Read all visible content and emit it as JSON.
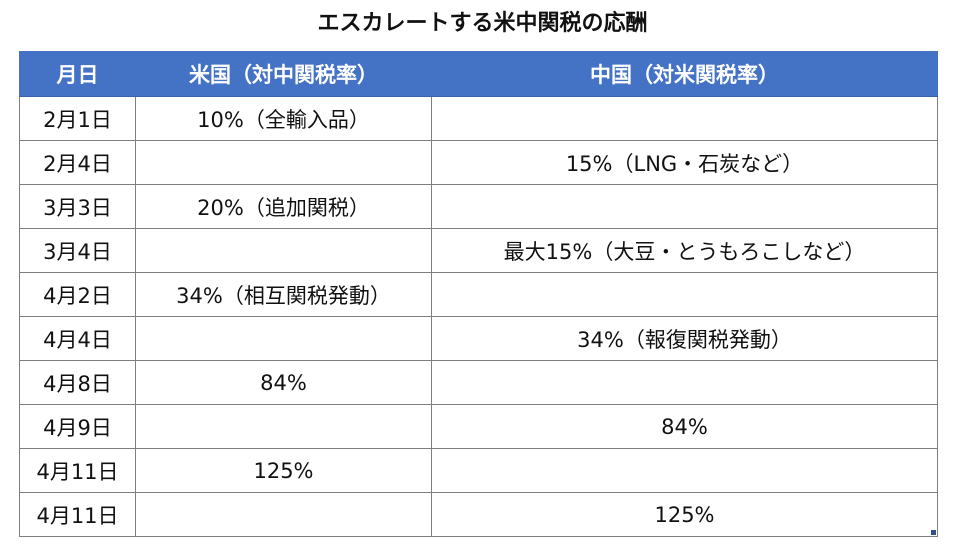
{
  "title": "エスカレートする米中関税の応酬",
  "table": {
    "headers": {
      "date": "月日",
      "us": "米国（対中関税率）",
      "china": "中国（対米関税率）"
    },
    "rows": [
      {
        "date": "2月1日",
        "us": "10%（全輸入品）",
        "china": ""
      },
      {
        "date": "2月4日",
        "us": "",
        "china": "15%（LNG・石炭など）"
      },
      {
        "date": "3月3日",
        "us": "20%（追加関税）",
        "china": ""
      },
      {
        "date": "3月4日",
        "us": "",
        "china": "最大15%（大豆・とうもろこしなど）"
      },
      {
        "date": "4月2日",
        "us": "34%（相互関税発動）",
        "china": ""
      },
      {
        "date": "4月4日",
        "us": "",
        "china": "34%（報復関税発動）"
      },
      {
        "date": "4月8日",
        "us": "84%",
        "china": ""
      },
      {
        "date": "4月9日",
        "us": "",
        "china": "84%"
      },
      {
        "date": "4月11日",
        "us": "125%",
        "china": ""
      },
      {
        "date": "4月11日",
        "us": "",
        "china": "125%"
      }
    ]
  },
  "colors": {
    "header_background": "#4472c4",
    "header_text": "#ffffff",
    "border": "#7f7f7f"
  }
}
